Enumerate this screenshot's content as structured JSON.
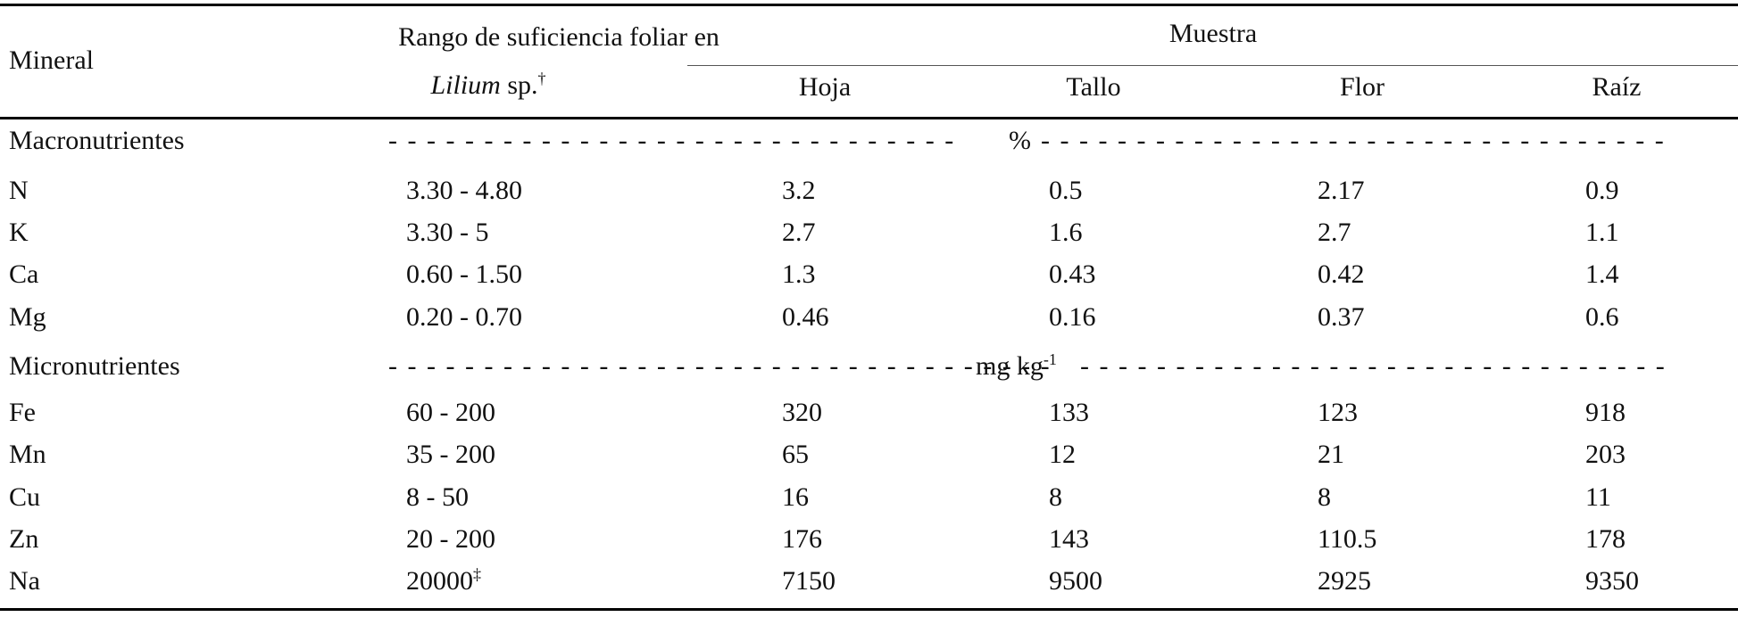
{
  "header": {
    "mineral": "Mineral",
    "range_line1": "Rango de suficiencia foliar en",
    "range_species_italic": "Lilium",
    "range_species_rest": " sp.",
    "range_species_mark": "†",
    "muestra": "Muestra",
    "cols": [
      "Hoja",
      "Tallo",
      "Flor",
      "Raíz"
    ]
  },
  "sections": [
    {
      "label": "Macronutrientes",
      "unit": "%",
      "unit_sup": "",
      "rows": [
        {
          "mineral": "N",
          "range": "3.30 - 4.80",
          "range_mark": "",
          "values": [
            "3.2",
            "0.5",
            "2.17",
            "0.9"
          ]
        },
        {
          "mineral": "K",
          "range": "3.30 - 5",
          "range_mark": "",
          "values": [
            "2.7",
            "1.6",
            "2.7",
            "1.1"
          ]
        },
        {
          "mineral": "Ca",
          "range": "0.60 - 1.50",
          "range_mark": "",
          "values": [
            "1.3",
            "0.43",
            "0.42",
            "1.4"
          ]
        },
        {
          "mineral": "Mg",
          "range": "0.20 - 0.70",
          "range_mark": "",
          "values": [
            "0.46",
            "0.16",
            "0.37",
            "0.6"
          ]
        }
      ]
    },
    {
      "label": "Micronutrientes",
      "unit": "mg kg",
      "unit_sup": "-1",
      "rows": [
        {
          "mineral": "Fe",
          "range": "60 - 200",
          "range_mark": "",
          "values": [
            "320",
            "133",
            "123",
            "918"
          ]
        },
        {
          "mineral": "Mn",
          "range": "35 - 200",
          "range_mark": "",
          "values": [
            "65",
            "12",
            "21",
            "203"
          ]
        },
        {
          "mineral": "Cu",
          "range": "8 - 50",
          "range_mark": "",
          "values": [
            "16",
            "8",
            "8",
            "11"
          ]
        },
        {
          "mineral": "Zn",
          "range": "20 - 200",
          "range_mark": "",
          "values": [
            "176",
            "143",
            "110.5",
            "178"
          ]
        },
        {
          "mineral": "Na",
          "range": "20000",
          "range_mark": "‡",
          "values": [
            "7150",
            "9500",
            "2925",
            "9350"
          ]
        }
      ]
    }
  ]
}
